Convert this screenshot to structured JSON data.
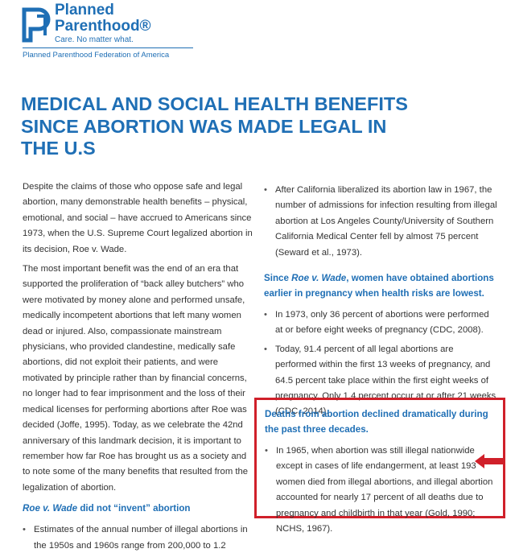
{
  "logo": {
    "line1": "Planned",
    "line2": "Parenthood®",
    "tagline": "Care. No matter what.",
    "federation": "Planned Parenthood Federation of America"
  },
  "title": {
    "lines": [
      "MEDICAL AND SOCIAL HEALTH BENEFITS",
      "SINCE ABORTION WAS MADE LEGAL IN",
      "THE U.S"
    ]
  },
  "left": {
    "paragraphs": [
      "Despite the claims of those who oppose safe and legal abortion, many demonstrable health benefits – physical, emotional, and social – have accrued to Americans since 1973, when the U.S. Supreme Court legalized abortion in its decision, Roe v. Wade.",
      "The most important benefit was the end of an era that supported the proliferation of “back alley butchers” who were motivated by money alone and performed unsafe, medically incompetent abortions that left many women dead or injured. Also, compassionate mainstream physicians, who provided clandestine, medically safe abortions, did not exploit their patients, and were motivated by principle rather than by financial concerns, no longer had to fear imprisonment and the loss of their medical licenses for performing abortions after Roe was decided (Joffe, 1995). Today, as we celebrate the 42nd anniversary of this landmark decision, it is important to remember how far Roe has brought us as a society and to note some of the many benefits that resulted from the legalization of abortion."
    ],
    "heading": [
      "Roe v. Wade",
      " did not “invent” abortion"
    ],
    "bullets": [
      "Estimates of the annual number of illegal abortions in the 1950s and 1960s range from 200,000 to 1.2"
    ]
  },
  "right": {
    "bullets1": [
      "After California liberalized its abortion law in 1967, the number of admissions for infection resulting from illegal abortion at Los Angeles County/University of Southern California Medical Center fell by almost 75 percent (Seward et al., 1973)."
    ],
    "heading": [
      "Since ",
      "Roe v. Wade",
      ", women have obtained abortions earlier in pregnancy when health risks are lowest."
    ],
    "bullets2": [
      "In 1973, only 36 percent of abortions were performed at or before eight weeks of pregnancy (CDC, 2008).",
      "Today, 91.4 percent of all legal abortions are performed within the first 13 weeks of pregnancy, and 64.5 percent take place within the first eight weeks of pregnancy. Only 1.4 percent occur at or after 21 weeks (CDC, 2014)."
    ],
    "box_heading": "Deaths from abortion declined dramatically during the past three decades.",
    "bullets3": [
      "In 1965, when abortion was still illegal nationwide except in cases of life endangerment, at least 193 women died from illegal abortions, and illegal abortion accounted for nearly 17 percent of all deaths due to pregnancy and childbirth in that year (Gold, 1990; NCHS, 1967)."
    ]
  }
}
